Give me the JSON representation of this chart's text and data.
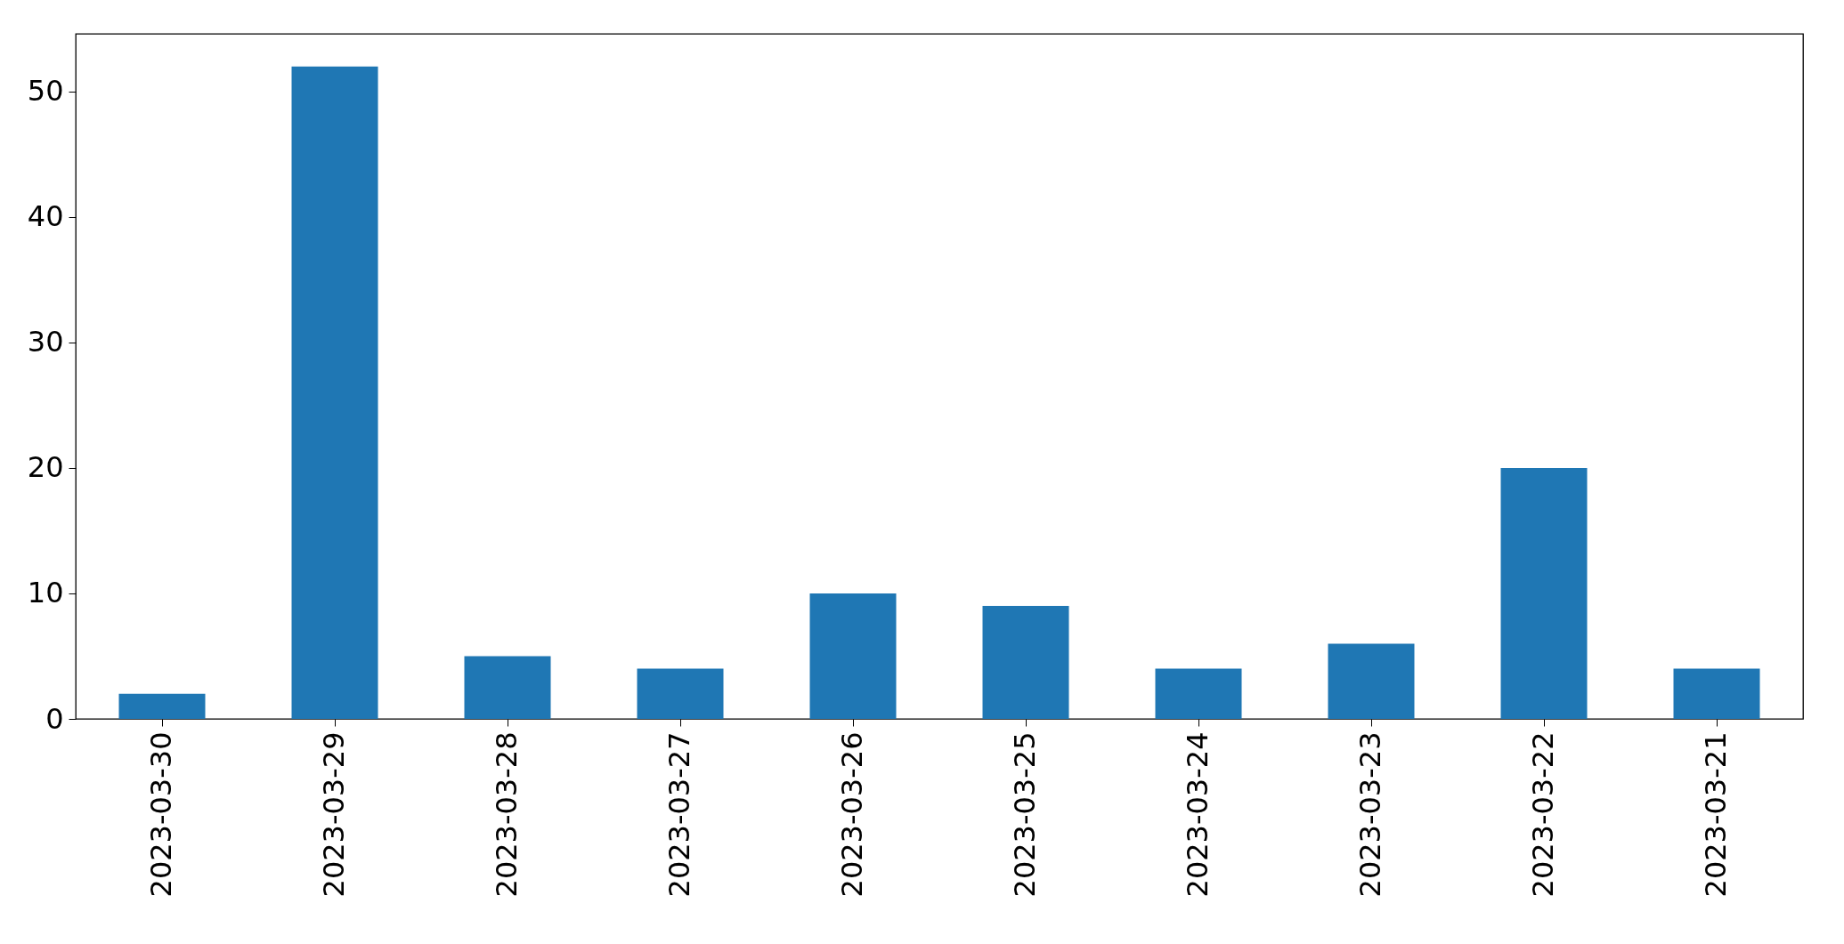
{
  "chart_data": {
    "type": "bar",
    "categories": [
      "2023-03-30",
      "2023-03-29",
      "2023-03-28",
      "2023-03-27",
      "2023-03-26",
      "2023-03-25",
      "2023-03-24",
      "2023-03-23",
      "2023-03-22",
      "2023-03-21"
    ],
    "values": [
      2,
      52,
      5,
      4,
      10,
      9,
      4,
      6,
      20,
      4
    ],
    "color": "#1f77b4",
    "ylim": [
      0,
      54.6
    ],
    "yticks": [
      0,
      10,
      20,
      30,
      40,
      50
    ],
    "grid": false
  }
}
